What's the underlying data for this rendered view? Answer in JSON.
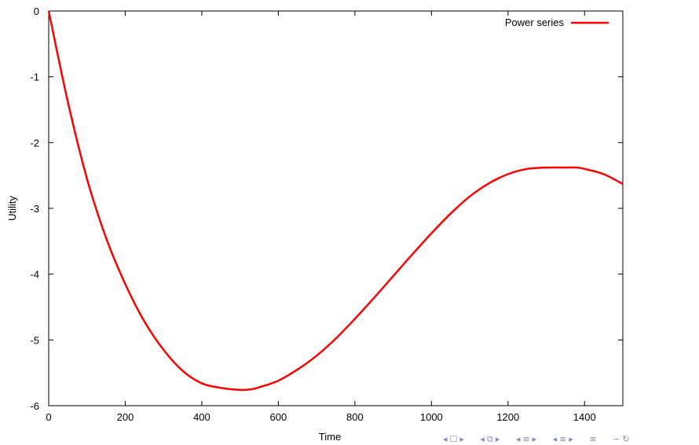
{
  "chart_data": {
    "type": "line",
    "xlabel": "Time",
    "ylabel": "Utility",
    "xlim": [
      0,
      1500
    ],
    "ylim": [
      -6,
      0
    ],
    "xticks": [
      0,
      200,
      400,
      600,
      800,
      1000,
      1200,
      1400
    ],
    "yticks": [
      0,
      -1,
      -2,
      -3,
      -4,
      -5,
      -6
    ],
    "grid": false,
    "legend": "top-right",
    "series": [
      {
        "name": "Power series",
        "color": "#ff0000",
        "x": [
          0,
          50,
          100,
          150,
          200,
          250,
          300,
          350,
          400,
          450,
          500,
          530,
          550,
          600,
          650,
          700,
          750,
          800,
          850,
          900,
          950,
          1000,
          1050,
          1100,
          1150,
          1200,
          1250,
          1300,
          1350,
          1380,
          1400,
          1450,
          1500
        ],
        "y": [
          0,
          -1.38,
          -2.55,
          -3.45,
          -4.15,
          -4.72,
          -5.15,
          -5.47,
          -5.66,
          -5.73,
          -5.76,
          -5.75,
          -5.72,
          -5.62,
          -5.45,
          -5.24,
          -4.98,
          -4.68,
          -4.36,
          -4.03,
          -3.7,
          -3.38,
          -3.08,
          -2.82,
          -2.62,
          -2.48,
          -2.4,
          -2.38,
          -2.38,
          -2.38,
          -2.4,
          -2.48,
          -2.63
        ]
      }
    ]
  },
  "nav_icons": [
    "frame-prev-icon",
    "frame-icon",
    "frame-next-icon",
    "subsection-prev-icon",
    "subsection-icon",
    "subsection-next-icon",
    "section-prev-icon",
    "section-icon",
    "section-next-icon",
    "slide-prev-icon",
    "slide-icon",
    "slide-next-icon",
    "align-icon",
    "search-icon",
    "back-icon"
  ]
}
